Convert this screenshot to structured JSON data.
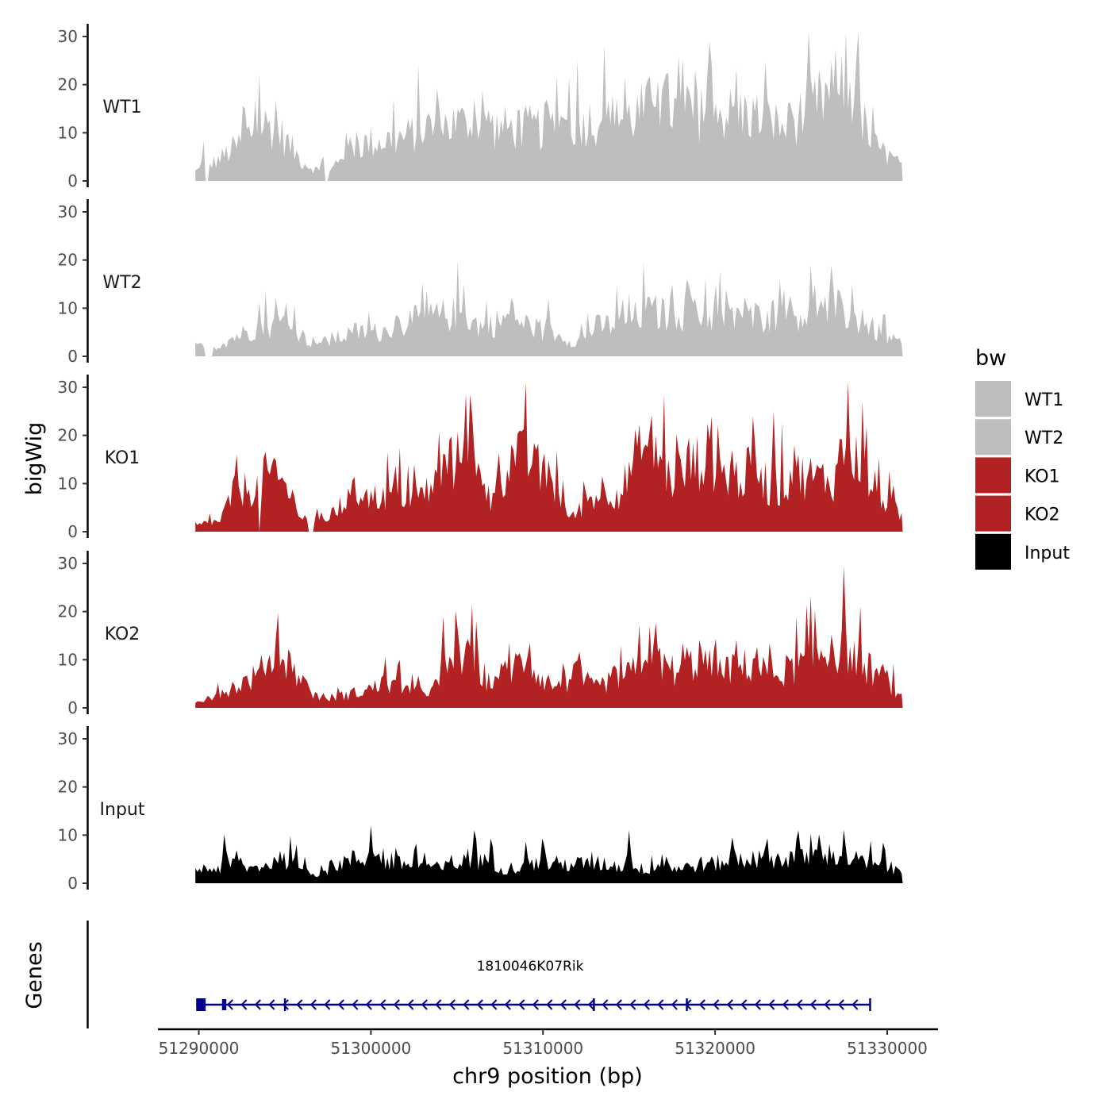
{
  "chart_data": {
    "type": "area",
    "chromosome": "chr9",
    "xlabel": "chr9 position (bp)",
    "ylabel_tracks": "bigWig",
    "ylabel_genes": "Genes",
    "xlim": [
      51289800,
      51330900
    ],
    "ylim": [
      0,
      31
    ],
    "y_ticks": [
      0,
      10,
      20,
      30
    ],
    "x_ticks": [
      51290000,
      51300000,
      51310000,
      51320000,
      51330000
    ],
    "x_tick_labels": [
      "51290000",
      "51300000",
      "51310000",
      "51320000",
      "51330000"
    ],
    "legend": {
      "title": "bw",
      "position": "right",
      "entries": [
        {
          "label": "WT1",
          "color": "#bebebe"
        },
        {
          "label": "WT2",
          "color": "#bebebe"
        },
        {
          "label": "KO1",
          "color": "#b22222"
        },
        {
          "label": "KO2",
          "color": "#b22222"
        },
        {
          "label": "Input",
          "color": "#000000"
        }
      ]
    },
    "tracks": [
      {
        "name": "WT1",
        "color": "#bebebe",
        "breakpoints": [
          [
            51289800,
            2
          ],
          [
            51291000,
            4
          ],
          [
            51292500,
            8
          ],
          [
            51293500,
            12
          ],
          [
            51294500,
            11
          ],
          [
            51296000,
            4
          ],
          [
            51297500,
            1
          ],
          [
            51298500,
            7
          ],
          [
            51300000,
            8
          ],
          [
            51302000,
            9
          ],
          [
            51303000,
            11
          ],
          [
            51305000,
            12
          ],
          [
            51306500,
            11
          ],
          [
            51308000,
            11
          ],
          [
            51310000,
            11
          ],
          [
            51312000,
            12
          ],
          [
            51313500,
            13
          ],
          [
            51315000,
            13
          ],
          [
            51317000,
            17
          ],
          [
            51318000,
            13
          ],
          [
            51320000,
            14
          ],
          [
            51322000,
            14
          ],
          [
            51324000,
            11
          ],
          [
            51325500,
            15
          ],
          [
            51327000,
            19
          ],
          [
            51328000,
            19
          ],
          [
            51329000,
            8
          ],
          [
            51330900,
            3
          ]
        ],
        "peaks": [
          [
            51290300,
            9
          ],
          [
            51293500,
            16
          ],
          [
            51294500,
            18
          ],
          [
            51297200,
            6
          ],
          [
            51304000,
            16
          ],
          [
            51306000,
            17
          ],
          [
            51311000,
            16
          ],
          [
            51314000,
            17
          ],
          [
            51316500,
            20
          ],
          [
            51317900,
            28
          ],
          [
            51320000,
            19
          ],
          [
            51321200,
            18
          ],
          [
            51323200,
            18
          ],
          [
            51325400,
            19
          ],
          [
            51327300,
            23
          ],
          [
            51328200,
            25
          ]
        ],
        "gaps": [
          [
            51290400,
            51290600
          ],
          [
            51297300,
            51297500
          ]
        ]
      },
      {
        "name": "WT2",
        "color": "#bebebe",
        "breakpoints": [
          [
            51289800,
            2
          ],
          [
            51291000,
            2
          ],
          [
            51292000,
            4
          ],
          [
            51293500,
            6
          ],
          [
            51295000,
            7
          ],
          [
            51296500,
            3
          ],
          [
            51297500,
            3
          ],
          [
            51299000,
            5
          ],
          [
            51300500,
            5
          ],
          [
            51302000,
            7
          ],
          [
            51303500,
            8
          ],
          [
            51305000,
            9
          ],
          [
            51306500,
            6
          ],
          [
            51308000,
            8
          ],
          [
            51309500,
            6
          ],
          [
            51311000,
            4
          ],
          [
            51312000,
            3
          ],
          [
            51313000,
            6
          ],
          [
            51314500,
            7
          ],
          [
            51316000,
            9
          ],
          [
            51317500,
            9
          ],
          [
            51319000,
            9
          ],
          [
            51320500,
            8
          ],
          [
            51322000,
            8
          ],
          [
            51324000,
            9
          ],
          [
            51325500,
            9
          ],
          [
            51327000,
            10
          ],
          [
            51328500,
            7
          ],
          [
            51330000,
            4
          ],
          [
            51330900,
            2
          ]
        ],
        "peaks": [
          [
            51293500,
            11
          ],
          [
            51294500,
            13
          ],
          [
            51301500,
            11
          ],
          [
            51303500,
            12
          ],
          [
            51305400,
            15
          ],
          [
            51308300,
            12
          ],
          [
            51310300,
            13
          ],
          [
            51315000,
            13
          ],
          [
            51316500,
            15
          ],
          [
            51318500,
            16
          ],
          [
            51321300,
            13
          ],
          [
            51324000,
            14
          ],
          [
            51325800,
            15
          ],
          [
            51327400,
            14
          ]
        ],
        "gaps": [
          [
            51290400,
            51290800
          ]
        ]
      },
      {
        "name": "KO1",
        "color": "#b22222",
        "breakpoints": [
          [
            51289800,
            1
          ],
          [
            51290500,
            2
          ],
          [
            51291200,
            2
          ],
          [
            51292000,
            8
          ],
          [
            51293000,
            9
          ],
          [
            51294000,
            11
          ],
          [
            51295000,
            10
          ],
          [
            51296000,
            3
          ],
          [
            51297000,
            2
          ],
          [
            51298000,
            4
          ],
          [
            51299000,
            8
          ],
          [
            51300000,
            7
          ],
          [
            51301500,
            8
          ],
          [
            51302500,
            7
          ],
          [
            51303500,
            9
          ],
          [
            51304500,
            14
          ],
          [
            51305400,
            15
          ],
          [
            51306000,
            13
          ],
          [
            51307000,
            6
          ],
          [
            51308000,
            15
          ],
          [
            51309000,
            15
          ],
          [
            51310000,
            12
          ],
          [
            51311000,
            8
          ],
          [
            51311500,
            2
          ],
          [
            51312500,
            6
          ],
          [
            51313500,
            9
          ],
          [
            51314500,
            8
          ],
          [
            51315500,
            16
          ],
          [
            51316500,
            18
          ],
          [
            51317500,
            10
          ],
          [
            51318500,
            13
          ],
          [
            51319500,
            16
          ],
          [
            51320500,
            12
          ],
          [
            51321500,
            11
          ],
          [
            51322500,
            14
          ],
          [
            51323500,
            6
          ],
          [
            51324000,
            11
          ],
          [
            51325000,
            12
          ],
          [
            51326000,
            11
          ],
          [
            51327000,
            11
          ],
          [
            51328000,
            16
          ],
          [
            51329000,
            10
          ],
          [
            51330000,
            6
          ],
          [
            51330900,
            3
          ]
        ],
        "peaks": [
          [
            51294500,
            16
          ],
          [
            51305000,
            19
          ],
          [
            51305500,
            31
          ],
          [
            51308500,
            22
          ],
          [
            51309500,
            20
          ],
          [
            51316200,
            21
          ],
          [
            51317800,
            24
          ],
          [
            51321000,
            17
          ],
          [
            51322200,
            24
          ],
          [
            51323400,
            25
          ],
          [
            51324600,
            18
          ],
          [
            51327300,
            25
          ],
          [
            51328200,
            20
          ]
        ],
        "gaps": [
          [
            51293500,
            51293600
          ],
          [
            51296300,
            51296700
          ]
        ]
      },
      {
        "name": "KO2",
        "color": "#b22222",
        "breakpoints": [
          [
            51289800,
            1
          ],
          [
            51291000,
            3
          ],
          [
            51292500,
            5
          ],
          [
            51293500,
            7
          ],
          [
            51294500,
            12
          ],
          [
            51295500,
            8
          ],
          [
            51296500,
            3
          ],
          [
            51297500,
            2
          ],
          [
            51299000,
            3
          ],
          [
            51300000,
            4
          ],
          [
            51301000,
            5
          ],
          [
            51302000,
            4
          ],
          [
            51303000,
            3
          ],
          [
            51304000,
            5
          ],
          [
            51305000,
            12
          ],
          [
            51306000,
            9
          ],
          [
            51307000,
            5
          ],
          [
            51308000,
            8
          ],
          [
            51309000,
            10
          ],
          [
            51310000,
            6
          ],
          [
            51311000,
            4
          ],
          [
            51312000,
            7
          ],
          [
            51313000,
            4
          ],
          [
            51314000,
            6
          ],
          [
            51315000,
            7
          ],
          [
            51316500,
            10
          ],
          [
            51318000,
            7
          ],
          [
            51319000,
            10
          ],
          [
            51320000,
            8
          ],
          [
            51321000,
            8
          ],
          [
            51322000,
            9
          ],
          [
            51323500,
            7
          ],
          [
            51325000,
            9
          ],
          [
            51326500,
            12
          ],
          [
            51327500,
            13
          ],
          [
            51328500,
            9
          ],
          [
            51330000,
            6
          ],
          [
            51330900,
            1
          ]
        ],
        "peaks": [
          [
            51294600,
            16
          ],
          [
            51304200,
            19
          ],
          [
            51305800,
            15
          ],
          [
            51309200,
            16
          ],
          [
            51311200,
            11
          ],
          [
            51316200,
            17
          ],
          [
            51318400,
            15
          ],
          [
            51320000,
            17
          ],
          [
            51322400,
            15
          ],
          [
            51326800,
            18
          ],
          [
            51327400,
            19
          ]
        ],
        "gaps": []
      },
      {
        "name": "Input",
        "color": "#000000",
        "breakpoints": [
          [
            51289800,
            3
          ],
          [
            51291000,
            3
          ],
          [
            51292000,
            4
          ],
          [
            51293000,
            3
          ],
          [
            51294000,
            4
          ],
          [
            51295000,
            5
          ],
          [
            51296000,
            3
          ],
          [
            51297000,
            2
          ],
          [
            51298000,
            4
          ],
          [
            51299000,
            5
          ],
          [
            51300000,
            5
          ],
          [
            51301000,
            4
          ],
          [
            51302000,
            4
          ],
          [
            51303000,
            4
          ],
          [
            51304000,
            3
          ],
          [
            51305000,
            4
          ],
          [
            51306000,
            5
          ],
          [
            51307000,
            4
          ],
          [
            51308000,
            3
          ],
          [
            51309000,
            4
          ],
          [
            51310000,
            4
          ],
          [
            51311000,
            4
          ],
          [
            51312000,
            4
          ],
          [
            51313000,
            4
          ],
          [
            51314000,
            4
          ],
          [
            51315000,
            3
          ],
          [
            51316000,
            3
          ],
          [
            51317000,
            4
          ],
          [
            51318000,
            3
          ],
          [
            51319000,
            4
          ],
          [
            51320000,
            4
          ],
          [
            51321000,
            5
          ],
          [
            51322000,
            5
          ],
          [
            51323000,
            5
          ],
          [
            51324000,
            5
          ],
          [
            51325000,
            5
          ],
          [
            51326000,
            6
          ],
          [
            51327000,
            6
          ],
          [
            51328000,
            5
          ],
          [
            51329000,
            4
          ],
          [
            51330000,
            3
          ],
          [
            51330900,
            2
          ]
        ],
        "peaks": [
          [
            51291500,
            11
          ],
          [
            51300000,
            12
          ],
          [
            51306000,
            11
          ],
          [
            51307000,
            11
          ],
          [
            51310000,
            11
          ],
          [
            51315000,
            11
          ],
          [
            51323000,
            11
          ],
          [
            51324800,
            13
          ],
          [
            51327500,
            12
          ],
          [
            51329800,
            10
          ]
        ],
        "gaps": []
      }
    ],
    "genes": [
      {
        "name": "1810046K07Rik",
        "strand": "-",
        "start": 51289850,
        "end": 51329000,
        "exons": [
          [
            51289850,
            51290400
          ],
          [
            51291350,
            51291600
          ],
          [
            51294950,
            51295000
          ],
          [
            51312900,
            51312950
          ],
          [
            51318300,
            51318350
          ],
          [
            51328950,
            51329000
          ]
        ]
      }
    ]
  }
}
